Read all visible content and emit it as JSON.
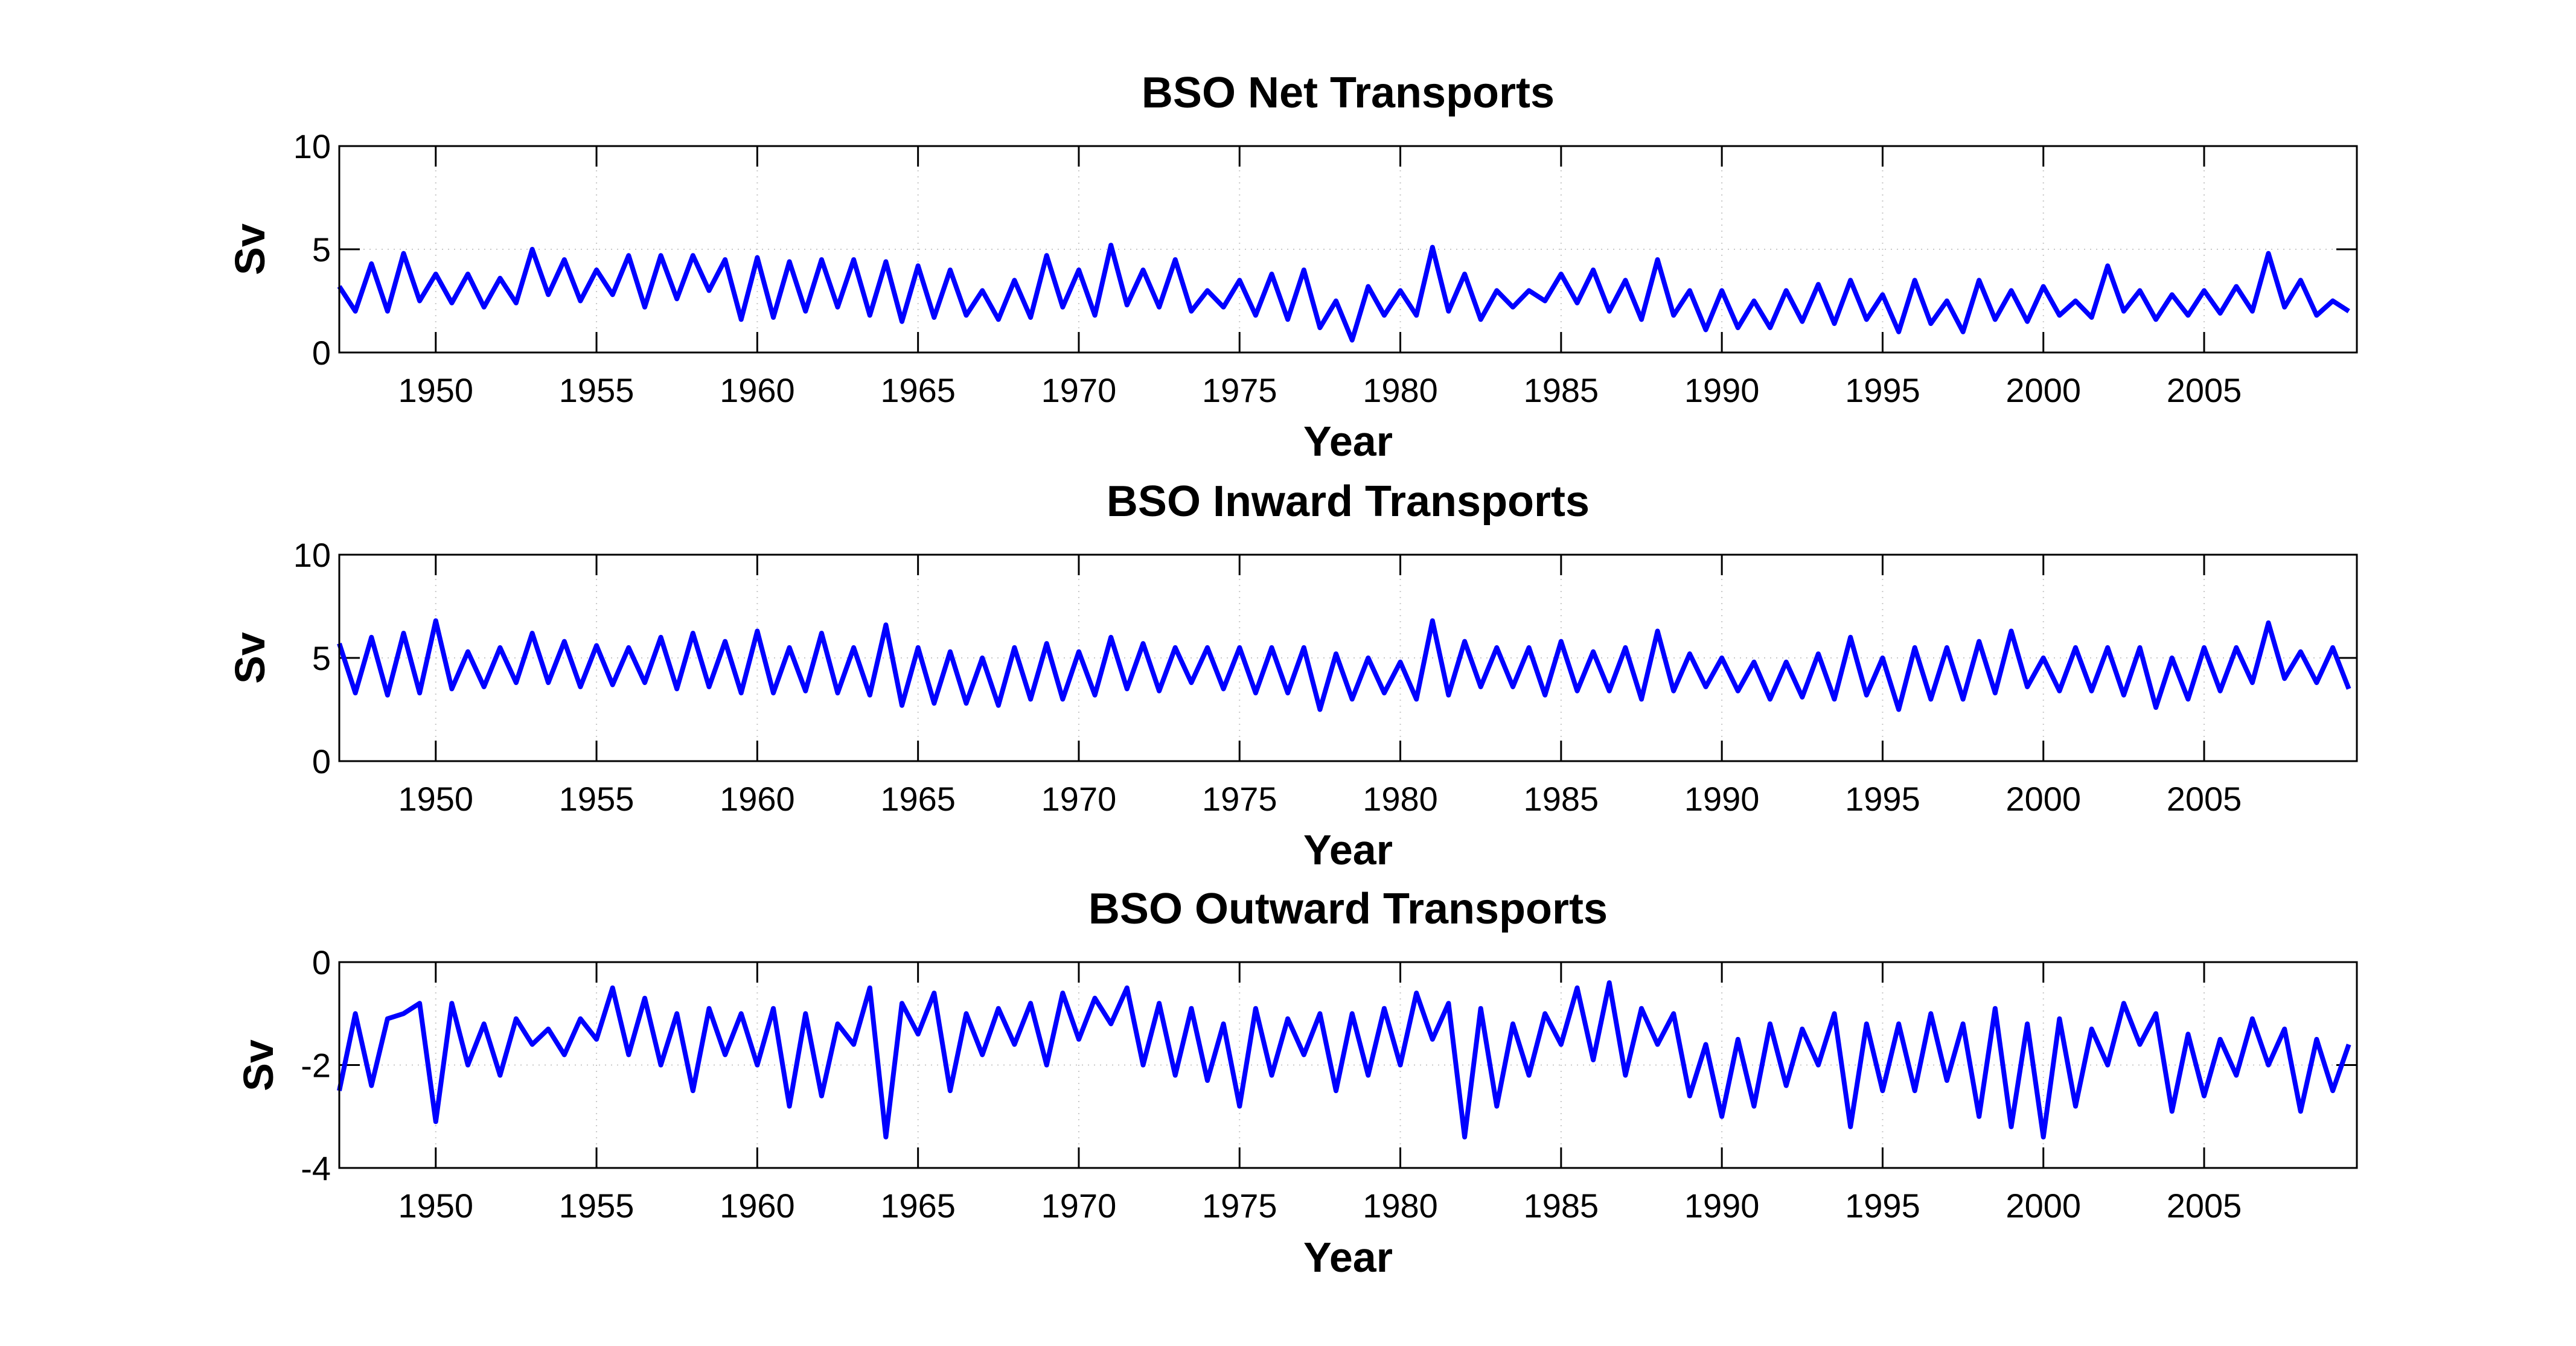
{
  "chart_data": [
    {
      "type": "line",
      "title": "BSO Net Transports",
      "xlabel": "Year",
      "ylabel": "Sv",
      "xlim": [
        1947,
        2009.75
      ],
      "ylim": [
        0,
        10
      ],
      "xticks": [
        "1950",
        "1955",
        "1960",
        "1965",
        "1970",
        "1975",
        "1980",
        "1985",
        "1990",
        "1995",
        "2000",
        "2005"
      ],
      "yticks": [
        "0",
        "5",
        "10"
      ],
      "grid": true,
      "color": "#0000ff",
      "x_start": 1947,
      "x_step": 0.5,
      "values": [
        3.2,
        2.0,
        4.3,
        2.0,
        4.8,
        2.5,
        3.8,
        2.4,
        3.8,
        2.2,
        3.6,
        2.4,
        5.0,
        2.8,
        4.5,
        2.5,
        4.0,
        2.8,
        4.7,
        2.2,
        4.7,
        2.6,
        4.7,
        3.0,
        4.5,
        1.6,
        4.6,
        1.7,
        4.4,
        2.0,
        4.5,
        2.2,
        4.5,
        1.8,
        4.4,
        1.5,
        4.2,
        1.7,
        4.0,
        1.8,
        3.0,
        1.6,
        3.5,
        1.7,
        4.7,
        2.2,
        4.0,
        1.8,
        5.2,
        2.3,
        4.0,
        2.2,
        4.5,
        2.0,
        3.0,
        2.2,
        3.5,
        1.8,
        3.8,
        1.6,
        4.0,
        1.2,
        2.5,
        0.6,
        3.2,
        1.8,
        3.0,
        1.8,
        5.1,
        2.0,
        3.8,
        1.6,
        3.0,
        2.2,
        3.0,
        2.5,
        3.8,
        2.4,
        4.0,
        2.0,
        3.5,
        1.6,
        4.5,
        1.8,
        3.0,
        1.1,
        3.0,
        1.2,
        2.5,
        1.2,
        3.0,
        1.5,
        3.3,
        1.4,
        3.5,
        1.6,
        2.8,
        1.0,
        3.5,
        1.4,
        2.5,
        1.0,
        3.5,
        1.6,
        3.0,
        1.5,
        3.2,
        1.8,
        2.5,
        1.7,
        4.2,
        2.0,
        3.0,
        1.6,
        2.8,
        1.8,
        3.0,
        1.9,
        3.2,
        2.0,
        4.8,
        2.2,
        3.5,
        1.8,
        2.5,
        2.0
      ]
    },
    {
      "type": "line",
      "title": "BSO Inward Transports",
      "xlabel": "Year",
      "ylabel": "Sv",
      "xlim": [
        1947,
        2009.75
      ],
      "ylim": [
        0,
        10
      ],
      "xticks": [
        "1950",
        "1955",
        "1960",
        "1965",
        "1970",
        "1975",
        "1980",
        "1985",
        "1990",
        "1995",
        "2000",
        "2005"
      ],
      "yticks": [
        "0",
        "5",
        "10"
      ],
      "grid": true,
      "color": "#0000ff",
      "x_start": 1947,
      "x_step": 0.5,
      "values": [
        5.7,
        3.3,
        6.0,
        3.2,
        6.2,
        3.3,
        6.8,
        3.5,
        5.3,
        3.6,
        5.5,
        3.8,
        6.2,
        3.8,
        5.8,
        3.6,
        5.6,
        3.7,
        5.5,
        3.8,
        6.0,
        3.5,
        6.2,
        3.6,
        5.8,
        3.3,
        6.3,
        3.3,
        5.5,
        3.4,
        6.2,
        3.3,
        5.5,
        3.2,
        6.6,
        2.7,
        5.5,
        2.8,
        5.3,
        2.8,
        5.0,
        2.7,
        5.5,
        3.0,
        5.7,
        3.0,
        5.3,
        3.2,
        6.0,
        3.5,
        5.7,
        3.4,
        5.5,
        3.8,
        5.5,
        3.5,
        5.5,
        3.3,
        5.5,
        3.3,
        5.5,
        2.5,
        5.2,
        3.0,
        5.0,
        3.3,
        4.8,
        3.0,
        6.8,
        3.2,
        5.8,
        3.6,
        5.5,
        3.6,
        5.5,
        3.2,
        5.8,
        3.4,
        5.3,
        3.4,
        5.5,
        3.0,
        6.3,
        3.4,
        5.2,
        3.6,
        5.0,
        3.4,
        4.8,
        3.0,
        4.8,
        3.1,
        5.2,
        3.0,
        6.0,
        3.2,
        5.0,
        2.5,
        5.5,
        3.0,
        5.5,
        3.0,
        5.8,
        3.3,
        6.3,
        3.6,
        5.0,
        3.4,
        5.5,
        3.4,
        5.5,
        3.2,
        5.5,
        2.6,
        5.0,
        3.0,
        5.5,
        3.4,
        5.5,
        3.8,
        6.7,
        4.0,
        5.3,
        3.8,
        5.5,
        3.5
      ]
    },
    {
      "type": "line",
      "title": "BSO Outward Transports",
      "xlabel": "Year",
      "ylabel": "Sv",
      "xlim": [
        1947,
        2009.75
      ],
      "ylim": [
        -4,
        0
      ],
      "xticks": [
        "1950",
        "1955",
        "1960",
        "1965",
        "1970",
        "1975",
        "1980",
        "1985",
        "1990",
        "1995",
        "2000",
        "2005"
      ],
      "yticks": [
        "-4",
        "-2",
        "0"
      ],
      "grid": true,
      "color": "#0000ff",
      "x_start": 1947,
      "x_step": 0.5,
      "values": [
        -2.5,
        -1.0,
        -2.4,
        -1.1,
        -1.0,
        -0.8,
        -3.1,
        -0.8,
        -2.0,
        -1.2,
        -2.2,
        -1.1,
        -1.6,
        -1.3,
        -1.8,
        -1.1,
        -1.5,
        -0.5,
        -1.8,
        -0.7,
        -2.0,
        -1.0,
        -2.5,
        -0.9,
        -1.8,
        -1.0,
        -2.0,
        -0.9,
        -2.8,
        -1.0,
        -2.6,
        -1.2,
        -1.6,
        -0.5,
        -3.4,
        -0.8,
        -1.4,
        -0.6,
        -2.5,
        -1.0,
        -1.8,
        -0.9,
        -1.6,
        -0.8,
        -2.0,
        -0.6,
        -1.5,
        -0.7,
        -1.2,
        -0.5,
        -2.0,
        -0.8,
        -2.2,
        -0.9,
        -2.3,
        -1.2,
        -2.8,
        -0.9,
        -2.2,
        -1.1,
        -1.8,
        -1.0,
        -2.5,
        -1.0,
        -2.2,
        -0.9,
        -2.0,
        -0.6,
        -1.5,
        -0.8,
        -3.4,
        -0.9,
        -2.8,
        -1.2,
        -2.2,
        -1.0,
        -1.6,
        -0.5,
        -1.9,
        -0.4,
        -2.2,
        -0.9,
        -1.6,
        -1.0,
        -2.6,
        -1.6,
        -3.0,
        -1.5,
        -2.8,
        -1.2,
        -2.4,
        -1.3,
        -2.0,
        -1.0,
        -3.2,
        -1.2,
        -2.5,
        -1.2,
        -2.5,
        -1.0,
        -2.3,
        -1.2,
        -3.0,
        -0.9,
        -3.2,
        -1.2,
        -3.4,
        -1.1,
        -2.8,
        -1.3,
        -2.0,
        -0.8,
        -1.6,
        -1.0,
        -2.9,
        -1.4,
        -2.6,
        -1.5,
        -2.2,
        -1.1,
        -2.0,
        -1.3,
        -2.9,
        -1.5,
        -2.5,
        -1.6
      ]
    }
  ]
}
